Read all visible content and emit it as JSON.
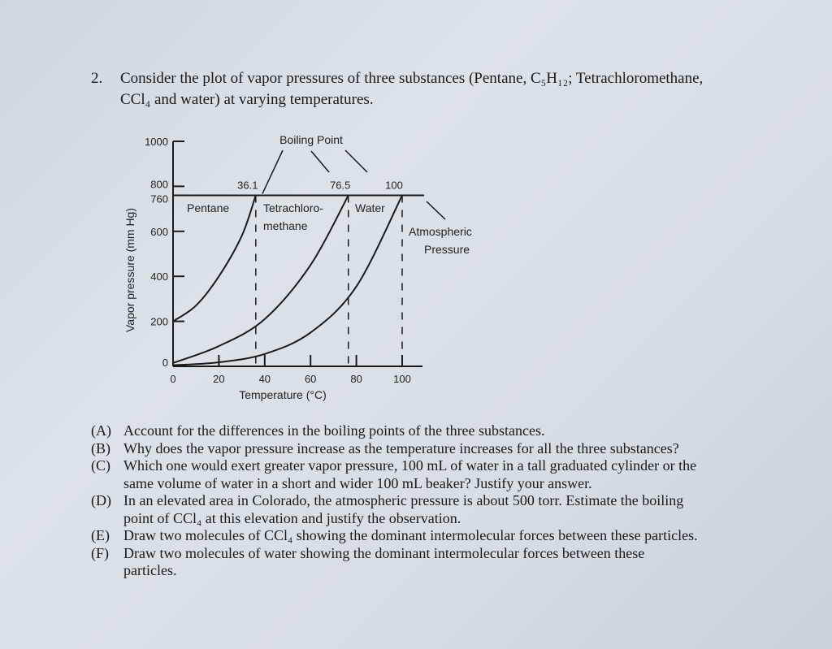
{
  "question": {
    "number": "2.",
    "line1": "Consider the plot of vapor pressures of three substances (Pentane, C₅H₁₂; Tetrachloromethane,",
    "line2": "CCl₄ and water) at varying temperatures."
  },
  "chart_data": {
    "type": "line",
    "xlabel": "Temperature (°C)",
    "ylabel": "Vapor pressure (mm Hg)",
    "xlim": [
      0,
      100
    ],
    "ylim": [
      0,
      1000
    ],
    "x_ticks": [
      "0",
      "20",
      "40",
      "60",
      "80",
      "100"
    ],
    "y_ticks": [
      "0",
      "200",
      "400",
      "600",
      "760",
      "800",
      "1000"
    ],
    "series": [
      {
        "name": "Pentane",
        "x": [
          0,
          10,
          20,
          30,
          36.1
        ],
        "y": [
          200,
          270,
          400,
          580,
          760
        ]
      },
      {
        "name": "Tetrachloromethane",
        "x": [
          0,
          20,
          40,
          60,
          76.5
        ],
        "y": [
          15,
          90,
          210,
          450,
          760
        ]
      },
      {
        "name": "Water",
        "x": [
          0,
          20,
          40,
          60,
          80,
          100
        ],
        "y": [
          5,
          18,
          55,
          150,
          355,
          760
        ]
      }
    ],
    "curve_labels": [
      "Pentane",
      "Tetrachloro-",
      "methane",
      "Water"
    ],
    "atmospheric_pressure": 760,
    "boiling_points": [
      "36.1",
      "76.5",
      "100"
    ],
    "annotations": {
      "boiling_point": "Boiling Point",
      "atmospheric_line1": "Atmospheric",
      "atmospheric_line2": "Pressure"
    }
  },
  "parts": [
    {
      "label": "(A)",
      "text": "Account for the differences in the boiling points of the three substances."
    },
    {
      "label": "(B)",
      "text": "Why does the vapor pressure increase as the temperature increases for all the three substances?"
    },
    {
      "label": "(C)",
      "text": "Which one would exert greater vapor pressure, 100 mL of water in a tall graduated cylinder or the",
      "continuation": "same volume of water in a short and wider 100 mL beaker? Justify your answer."
    },
    {
      "label": "(D)",
      "text": "In an elevated area in Colorado, the atmospheric pressure is about 500 torr. Estimate the boiling",
      "continuation": "point of CCl₄ at this elevation and justify the observation."
    },
    {
      "label": "(E)",
      "text": "Draw two molecules of CCl₄ showing the dominant intermolecular forces between these particles."
    },
    {
      "label": "(F)",
      "text": "Draw two molecules of water showing the dominant intermolecular forces between these",
      "continuation": "particles."
    }
  ]
}
